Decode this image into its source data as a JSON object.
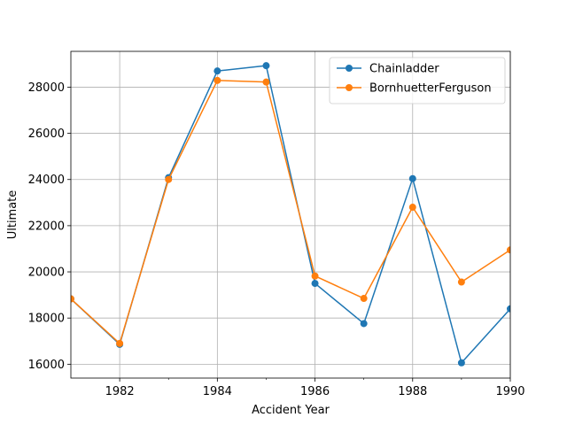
{
  "chart_data": {
    "type": "line",
    "xlabel": "Accident Year",
    "ylabel": "Ultimate",
    "x": [
      1981,
      1982,
      1983,
      1984,
      1985,
      1986,
      1987,
      1988,
      1989,
      1990
    ],
    "xlim": [
      1981,
      1990
    ],
    "ylim": [
      15400,
      29550
    ],
    "xticks": [
      1982,
      1984,
      1986,
      1988,
      1990
    ],
    "xticks_minor": [
      1983,
      1985,
      1987,
      1989
    ],
    "yticks": [
      16000,
      18000,
      20000,
      22000,
      24000,
      26000,
      28000
    ],
    "grid": true,
    "legend_position": "top-right",
    "series": [
      {
        "name": "Chainladder",
        "color": "#1f77b4",
        "values": [
          18830,
          16860,
          24080,
          28700,
          28930,
          19500,
          17760,
          24040,
          16060,
          18400
        ]
      },
      {
        "name": "BornhuetterFerguson",
        "color": "#ff7f0e",
        "values": [
          18830,
          16900,
          24000,
          28290,
          28220,
          19820,
          18850,
          22800,
          19560,
          20950
        ]
      }
    ]
  }
}
